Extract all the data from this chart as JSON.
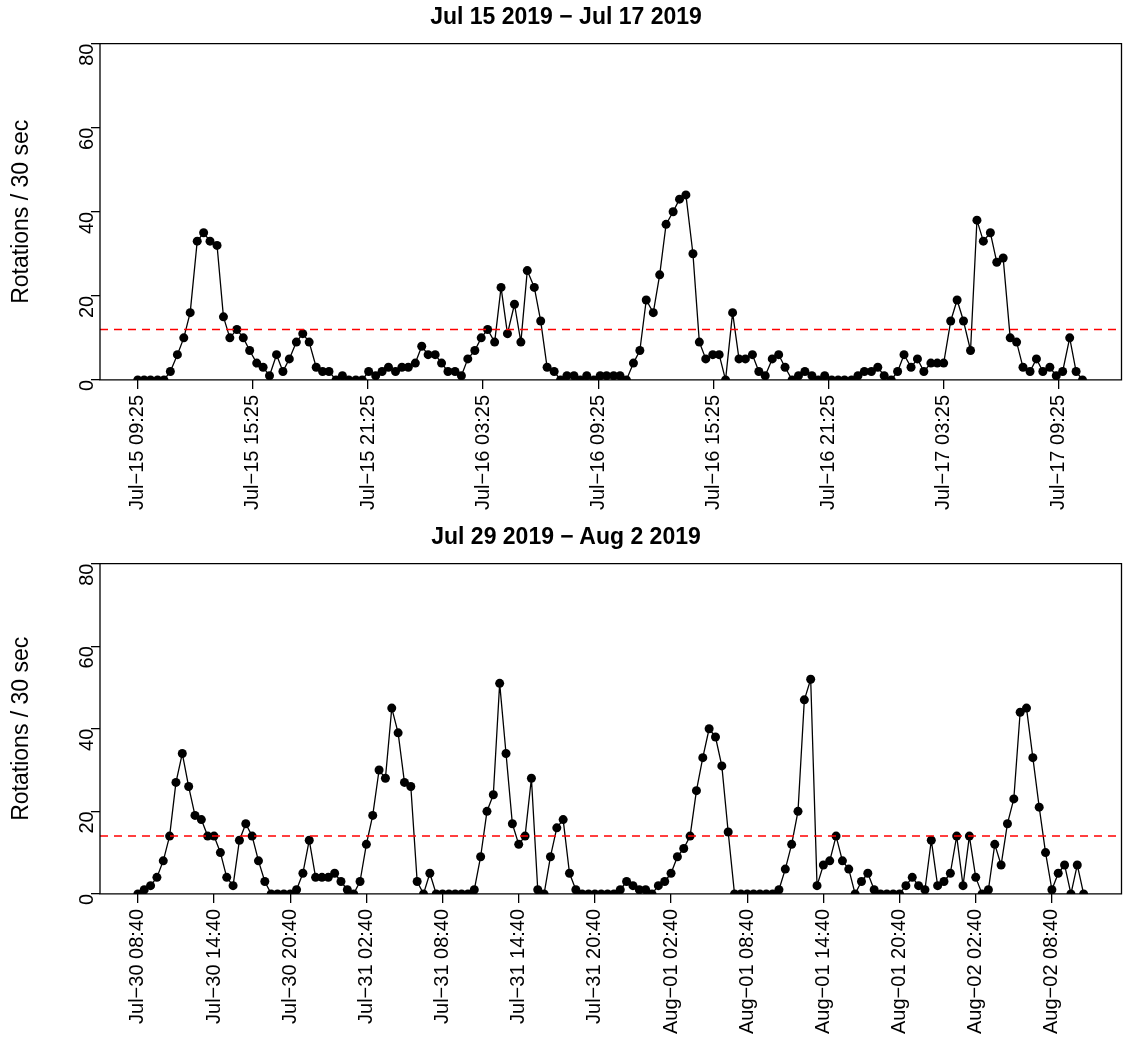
{
  "chart_data": [
    {
      "type": "line",
      "title": "Jul 15 2019 − Jul 17 2019",
      "ylabel": "Rotations / 30 sec",
      "marker": "circle",
      "line_style": "solid",
      "grid": false,
      "legend": false,
      "xlim": [
        "2019-07-15T07:27",
        "2019-07-17T12:41"
      ],
      "xticks": [
        {
          "value": "2019-07-15T09:25",
          "label": "Jul−15 09:25"
        },
        {
          "value": "2019-07-15T15:25",
          "label": "Jul−15 15:25"
        },
        {
          "value": "2019-07-15T21:25",
          "label": "Jul−15 21:25"
        },
        {
          "value": "2019-07-16T03:25",
          "label": "Jul−16 03:25"
        },
        {
          "value": "2019-07-16T09:25",
          "label": "Jul−16 09:25"
        },
        {
          "value": "2019-07-16T15:25",
          "label": "Jul−16 15:25"
        },
        {
          "value": "2019-07-16T21:25",
          "label": "Jul−16 21:25"
        },
        {
          "value": "2019-07-17T03:25",
          "label": "Jul−17 03:25"
        },
        {
          "value": "2019-07-17T09:25",
          "label": "Jul−17 09:25"
        }
      ],
      "ylim": [
        0,
        80
      ],
      "yticks": [
        0,
        20,
        40,
        60,
        80
      ],
      "ref_lines": [
        {
          "axis": "y",
          "value": 12,
          "color": "#ff0000",
          "line_style": "dashed"
        }
      ],
      "x": [
        "2019-07-15T09:25",
        "2019-07-15T09:45",
        "2019-07-15T10:05",
        "2019-07-15T10:27",
        "2019-07-15T10:47",
        "2019-07-15T11:07",
        "2019-07-15T11:29",
        "2019-07-15T11:49",
        "2019-07-15T12:09",
        "2019-07-15T12:31",
        "2019-07-15T12:51",
        "2019-07-15T13:11",
        "2019-07-15T13:33",
        "2019-07-15T13:53",
        "2019-07-15T14:13",
        "2019-07-15T14:35",
        "2019-07-15T14:55",
        "2019-07-15T15:15",
        "2019-07-15T15:37",
        "2019-07-15T15:57",
        "2019-07-15T16:17",
        "2019-07-15T16:39",
        "2019-07-15T16:59",
        "2019-07-15T17:19",
        "2019-07-15T17:41",
        "2019-07-15T18:01",
        "2019-07-15T18:21",
        "2019-07-15T18:43",
        "2019-07-15T19:03",
        "2019-07-15T19:23",
        "2019-07-15T19:45",
        "2019-07-15T20:05",
        "2019-07-15T20:25",
        "2019-07-15T20:47",
        "2019-07-15T21:07",
        "2019-07-15T21:27",
        "2019-07-15T21:49",
        "2019-07-15T22:09",
        "2019-07-15T22:29",
        "2019-07-15T22:51",
        "2019-07-15T23:11",
        "2019-07-15T23:31",
        "2019-07-15T23:53",
        "2019-07-16T00:13",
        "2019-07-16T00:33",
        "2019-07-16T00:55",
        "2019-07-16T01:15",
        "2019-07-16T01:35",
        "2019-07-16T01:57",
        "2019-07-16T02:17",
        "2019-07-16T02:37",
        "2019-07-16T02:59",
        "2019-07-16T03:19",
        "2019-07-16T03:39",
        "2019-07-16T04:01",
        "2019-07-16T04:21",
        "2019-07-16T04:41",
        "2019-07-16T05:03",
        "2019-07-16T05:23",
        "2019-07-16T05:43",
        "2019-07-16T06:05",
        "2019-07-16T06:25",
        "2019-07-16T06:45",
        "2019-07-16T07:07",
        "2019-07-16T07:27",
        "2019-07-16T07:47",
        "2019-07-16T08:09",
        "2019-07-16T08:29",
        "2019-07-16T08:49",
        "2019-07-16T09:11",
        "2019-07-16T09:31",
        "2019-07-16T09:51",
        "2019-07-16T10:13",
        "2019-07-16T10:33",
        "2019-07-16T10:53",
        "2019-07-16T11:15",
        "2019-07-16T11:35",
        "2019-07-16T11:55",
        "2019-07-16T12:17",
        "2019-07-16T12:37",
        "2019-07-16T12:57",
        "2019-07-16T13:19",
        "2019-07-16T13:39",
        "2019-07-16T13:59",
        "2019-07-16T14:21",
        "2019-07-16T14:41",
        "2019-07-16T15:01",
        "2019-07-16T15:23",
        "2019-07-16T15:43",
        "2019-07-16T16:03",
        "2019-07-16T16:25",
        "2019-07-16T16:45",
        "2019-07-16T17:05",
        "2019-07-16T17:27",
        "2019-07-16T17:47",
        "2019-07-16T18:07",
        "2019-07-16T18:29",
        "2019-07-16T18:49",
        "2019-07-16T19:09",
        "2019-07-16T19:31",
        "2019-07-16T19:51",
        "2019-07-16T20:11",
        "2019-07-16T20:33",
        "2019-07-16T20:53",
        "2019-07-16T21:13",
        "2019-07-16T21:35",
        "2019-07-16T21:55",
        "2019-07-16T22:15",
        "2019-07-16T22:37",
        "2019-07-16T22:57",
        "2019-07-16T23:17",
        "2019-07-16T23:39",
        "2019-07-16T23:59",
        "2019-07-17T00:19",
        "2019-07-17T00:41",
        "2019-07-17T01:01",
        "2019-07-17T01:21",
        "2019-07-17T01:43",
        "2019-07-17T02:03",
        "2019-07-17T02:23",
        "2019-07-17T02:45",
        "2019-07-17T03:05",
        "2019-07-17T03:25",
        "2019-07-17T03:47",
        "2019-07-17T04:07",
        "2019-07-17T04:27",
        "2019-07-17T04:49",
        "2019-07-17T05:09",
        "2019-07-17T05:29",
        "2019-07-17T05:51",
        "2019-07-17T06:11",
        "2019-07-17T06:31",
        "2019-07-17T06:53",
        "2019-07-17T07:13",
        "2019-07-17T07:33",
        "2019-07-17T07:55",
        "2019-07-17T08:15",
        "2019-07-17T08:35",
        "2019-07-17T08:57",
        "2019-07-17T09:17",
        "2019-07-17T09:37",
        "2019-07-17T09:59",
        "2019-07-17T10:19",
        "2019-07-17T10:39"
      ],
      "series": [
        {
          "color": "#000000",
          "values": [
            0,
            0,
            0,
            0,
            0,
            2,
            6,
            10,
            16,
            33,
            35,
            33,
            32,
            15,
            10,
            12,
            10,
            7,
            4,
            3,
            1,
            6,
            2,
            5,
            9,
            11,
            9,
            3,
            2,
            2,
            0,
            1,
            0,
            0,
            0,
            2,
            1,
            2,
            3,
            2,
            3,
            3,
            4,
            8,
            6,
            6,
            4,
            2,
            2,
            1,
            5,
            7,
            10,
            12,
            9,
            22,
            11,
            18,
            9,
            26,
            22,
            14,
            3,
            2,
            0,
            1,
            1,
            0,
            1,
            0,
            1,
            1,
            1,
            1,
            0,
            4,
            7,
            19,
            16,
            25,
            37,
            40,
            43,
            44,
            30,
            9,
            5,
            6,
            6,
            0,
            16,
            5,
            5,
            6,
            2,
            1,
            5,
            6,
            3,
            0,
            1,
            2,
            1,
            0,
            1,
            0,
            0,
            0,
            0,
            1,
            2,
            2,
            3,
            1,
            0,
            2,
            6,
            3,
            5,
            2,
            4,
            4,
            4,
            14,
            19,
            14,
            7,
            38,
            33,
            35,
            28,
            29,
            10,
            9,
            3,
            2,
            5,
            2,
            3,
            1,
            2,
            10,
            2,
            0
          ]
        }
      ]
    },
    {
      "type": "line",
      "title": "Jul 29 2019 − Aug 2 2019",
      "ylabel": "Rotations / 30 sec",
      "marker": "circle",
      "line_style": "solid",
      "grid": false,
      "legend": false,
      "xlim": [
        "2019-07-30T05:41",
        "2019-08-02T14:09"
      ],
      "xticks": [
        {
          "value": "2019-07-30T08:40",
          "label": "Jul−30 08:40"
        },
        {
          "value": "2019-07-30T14:40",
          "label": "Jul−30 14:40"
        },
        {
          "value": "2019-07-30T20:40",
          "label": "Jul−30 20:40"
        },
        {
          "value": "2019-07-31T02:40",
          "label": "Jul−31 02:40"
        },
        {
          "value": "2019-07-31T08:40",
          "label": "Jul−31 08:40"
        },
        {
          "value": "2019-07-31T14:40",
          "label": "Jul−31 14:40"
        },
        {
          "value": "2019-07-31T20:40",
          "label": "Jul−31 20:40"
        },
        {
          "value": "2019-08-01T02:40",
          "label": "Aug−01 02:40"
        },
        {
          "value": "2019-08-01T08:40",
          "label": "Aug−01 08:40"
        },
        {
          "value": "2019-08-01T14:40",
          "label": "Aug−01 14:40"
        },
        {
          "value": "2019-08-01T20:40",
          "label": "Aug−01 20:40"
        },
        {
          "value": "2019-08-02T02:40",
          "label": "Aug−02 02:40"
        },
        {
          "value": "2019-08-02T08:40",
          "label": "Aug−02 08:40"
        }
      ],
      "ylim": [
        0,
        80
      ],
      "yticks": [
        0,
        20,
        40,
        60,
        80
      ],
      "ref_lines": [
        {
          "axis": "y",
          "value": 14,
          "color": "#ff0000",
          "line_style": "dashed"
        }
      ],
      "x": [
        "2019-07-30T08:40",
        "2019-07-30T09:10",
        "2019-07-30T09:40",
        "2019-07-30T10:10",
        "2019-07-30T10:40",
        "2019-07-30T11:10",
        "2019-07-30T11:40",
        "2019-07-30T12:10",
        "2019-07-30T12:40",
        "2019-07-30T13:10",
        "2019-07-30T13:40",
        "2019-07-30T14:10",
        "2019-07-30T14:40",
        "2019-07-30T15:10",
        "2019-07-30T15:40",
        "2019-07-30T16:10",
        "2019-07-30T16:40",
        "2019-07-30T17:10",
        "2019-07-30T17:40",
        "2019-07-30T18:10",
        "2019-07-30T18:40",
        "2019-07-30T19:10",
        "2019-07-30T19:40",
        "2019-07-30T20:10",
        "2019-07-30T20:40",
        "2019-07-30T21:10",
        "2019-07-30T21:40",
        "2019-07-30T22:10",
        "2019-07-30T22:40",
        "2019-07-30T23:10",
        "2019-07-30T23:40",
        "2019-07-31T00:10",
        "2019-07-31T00:40",
        "2019-07-31T01:10",
        "2019-07-31T01:40",
        "2019-07-31T02:10",
        "2019-07-31T02:40",
        "2019-07-31T03:10",
        "2019-07-31T03:40",
        "2019-07-31T04:10",
        "2019-07-31T04:40",
        "2019-07-31T05:10",
        "2019-07-31T05:40",
        "2019-07-31T06:10",
        "2019-07-31T06:40",
        "2019-07-31T07:10",
        "2019-07-31T07:40",
        "2019-07-31T08:10",
        "2019-07-31T08:40",
        "2019-07-31T09:10",
        "2019-07-31T09:40",
        "2019-07-31T10:10",
        "2019-07-31T10:40",
        "2019-07-31T11:10",
        "2019-07-31T11:40",
        "2019-07-31T12:10",
        "2019-07-31T12:40",
        "2019-07-31T13:10",
        "2019-07-31T13:40",
        "2019-07-31T14:10",
        "2019-07-31T14:40",
        "2019-07-31T15:10",
        "2019-07-31T15:40",
        "2019-07-31T16:10",
        "2019-07-31T16:40",
        "2019-07-31T17:10",
        "2019-07-31T17:40",
        "2019-07-31T18:10",
        "2019-07-31T18:40",
        "2019-07-31T19:10",
        "2019-07-31T19:40",
        "2019-07-31T20:10",
        "2019-07-31T20:40",
        "2019-07-31T21:10",
        "2019-07-31T21:40",
        "2019-07-31T22:10",
        "2019-07-31T22:40",
        "2019-07-31T23:10",
        "2019-07-31T23:40",
        "2019-08-01T00:10",
        "2019-08-01T00:40",
        "2019-08-01T01:10",
        "2019-08-01T01:40",
        "2019-08-01T02:10",
        "2019-08-01T02:40",
        "2019-08-01T03:10",
        "2019-08-01T03:40",
        "2019-08-01T04:10",
        "2019-08-01T04:40",
        "2019-08-01T05:10",
        "2019-08-01T05:40",
        "2019-08-01T06:10",
        "2019-08-01T06:40",
        "2019-08-01T07:10",
        "2019-08-01T07:40",
        "2019-08-01T08:10",
        "2019-08-01T08:40",
        "2019-08-01T09:10",
        "2019-08-01T09:40",
        "2019-08-01T10:10",
        "2019-08-01T10:40",
        "2019-08-01T11:10",
        "2019-08-01T11:40",
        "2019-08-01T12:10",
        "2019-08-01T12:40",
        "2019-08-01T13:10",
        "2019-08-01T13:40",
        "2019-08-01T14:10",
        "2019-08-01T14:40",
        "2019-08-01T15:10",
        "2019-08-01T15:40",
        "2019-08-01T16:10",
        "2019-08-01T16:40",
        "2019-08-01T17:10",
        "2019-08-01T17:40",
        "2019-08-01T18:10",
        "2019-08-01T18:40",
        "2019-08-01T19:10",
        "2019-08-01T19:40",
        "2019-08-01T20:10",
        "2019-08-01T20:40",
        "2019-08-01T21:10",
        "2019-08-01T21:40",
        "2019-08-01T22:10",
        "2019-08-01T22:40",
        "2019-08-01T23:10",
        "2019-08-01T23:40",
        "2019-08-02T00:10",
        "2019-08-02T00:40",
        "2019-08-02T01:10",
        "2019-08-02T01:40",
        "2019-08-02T02:10",
        "2019-08-02T02:40",
        "2019-08-02T03:10",
        "2019-08-02T03:40",
        "2019-08-02T04:10",
        "2019-08-02T04:40",
        "2019-08-02T05:10",
        "2019-08-02T05:40",
        "2019-08-02T06:10",
        "2019-08-02T06:40",
        "2019-08-02T07:10",
        "2019-08-02T07:40",
        "2019-08-02T08:10",
        "2019-08-02T08:40",
        "2019-08-02T09:10",
        "2019-08-02T09:40",
        "2019-08-02T10:10",
        "2019-08-02T10:40",
        "2019-08-02T11:10"
      ],
      "series": [
        {
          "color": "#000000",
          "values": [
            0,
            1,
            2,
            4,
            8,
            14,
            27,
            34,
            26,
            19,
            18,
            14,
            14,
            10,
            4,
            2,
            13,
            17,
            14,
            8,
            3,
            0,
            0,
            0,
            0,
            1,
            5,
            13,
            4,
            4,
            4,
            5,
            3,
            1,
            0,
            3,
            12,
            19,
            30,
            28,
            45,
            39,
            27,
            26,
            3,
            0,
            5,
            0,
            0,
            0,
            0,
            0,
            0,
            1,
            9,
            20,
            24,
            51,
            34,
            17,
            12,
            14,
            28,
            1,
            0,
            9,
            16,
            18,
            5,
            1,
            0,
            0,
            0,
            0,
            0,
            0,
            1,
            3,
            2,
            1,
            1,
            0,
            2,
            3,
            5,
            9,
            11,
            14,
            25,
            33,
            40,
            38,
            31,
            15,
            0,
            0,
            0,
            0,
            0,
            0,
            0,
            1,
            6,
            12,
            20,
            47,
            52,
            2,
            7,
            8,
            14,
            8,
            6,
            0,
            3,
            5,
            1,
            0,
            0,
            0,
            0,
            2,
            4,
            2,
            1,
            13,
            2,
            3,
            5,
            14,
            2,
            14,
            4,
            0,
            1,
            12,
            7,
            17,
            23,
            44,
            45,
            33,
            21,
            10,
            1,
            5,
            7,
            0,
            7,
            0
          ]
        }
      ]
    }
  ]
}
